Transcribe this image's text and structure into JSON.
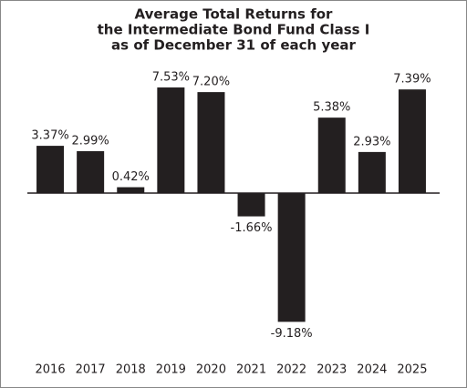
{
  "chart_data": {
    "type": "bar",
    "title_lines": [
      "Average Total Returns for",
      "the Intermediate Bond Fund Class I",
      "as of December 31 of each year"
    ],
    "categories": [
      "2016",
      "2017",
      "2018",
      "2019",
      "2020",
      "2021",
      "2022",
      "2023",
      "2024",
      "2025"
    ],
    "values": [
      3.37,
      2.99,
      0.42,
      7.53,
      7.2,
      -1.66,
      -9.18,
      5.38,
      2.93,
      7.39
    ],
    "value_labels": [
      "3.37%",
      "2.99%",
      "0.42%",
      "7.53%",
      "7.20%",
      "-1.66%",
      "-9.18%",
      "5.38%",
      "2.93%",
      "7.39%"
    ],
    "color": "#231f20"
  }
}
